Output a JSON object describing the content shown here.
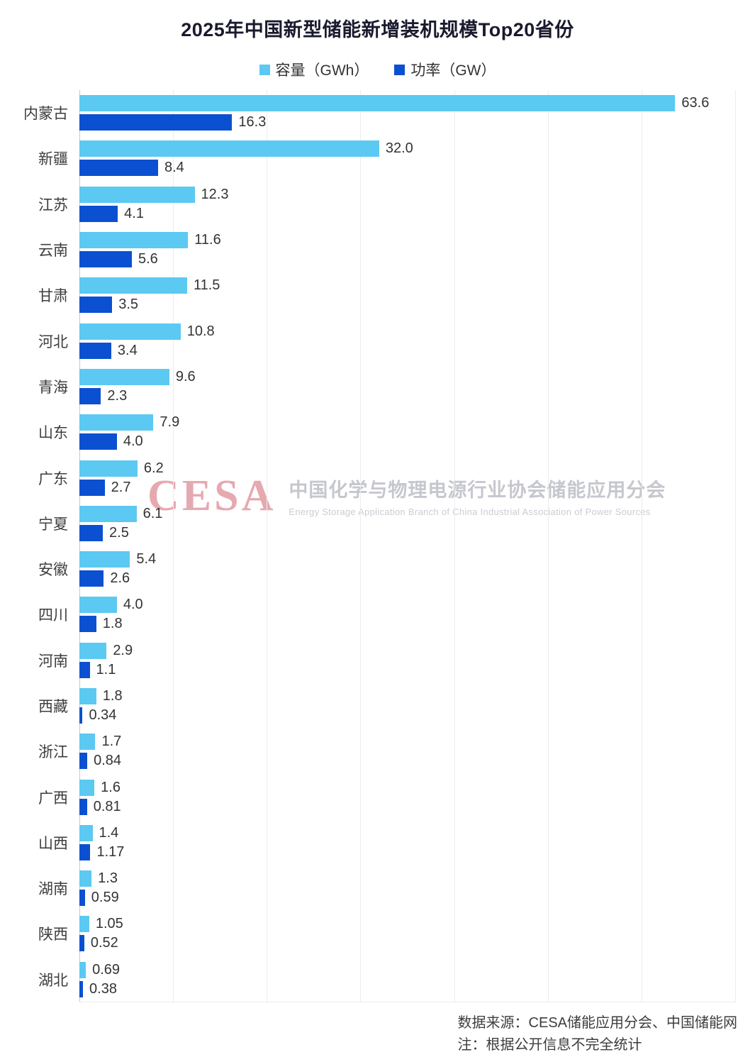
{
  "chart_data": {
    "type": "bar",
    "orientation": "horizontal",
    "title": "2025年中国新型储能新增装机规模Top20省份",
    "categories": [
      "内蒙古",
      "新疆",
      "江苏",
      "云南",
      "甘肃",
      "河北",
      "青海",
      "山东",
      "广东",
      "宁夏",
      "安徽",
      "四川",
      "河南",
      "西藏",
      "浙江",
      "广西",
      "山西",
      "湖南",
      "陕西",
      "湖北"
    ],
    "series": [
      {
        "name": "容量（GWh）",
        "color": "#5BC9F2",
        "values": [
          63.6,
          32.0,
          12.3,
          11.6,
          11.5,
          10.8,
          9.6,
          7.9,
          6.2,
          6.1,
          5.4,
          4.0,
          2.9,
          1.8,
          1.7,
          1.6,
          1.4,
          1.3,
          1.05,
          0.69
        ],
        "labels": [
          "63.6",
          "32.0",
          "12.3",
          "11.6",
          "11.5",
          "10.8",
          "9.6",
          "7.9",
          "6.2",
          "6.1",
          "5.4",
          "4.0",
          "2.9",
          "1.8",
          "1.7",
          "1.6",
          "1.4",
          "1.3",
          "1.05",
          "0.69"
        ]
      },
      {
        "name": "功率（GW）",
        "color": "#0B50D0",
        "values": [
          16.3,
          8.4,
          4.1,
          5.6,
          3.5,
          3.4,
          2.3,
          4.0,
          2.7,
          2.5,
          2.6,
          1.8,
          1.1,
          0.34,
          0.84,
          0.81,
          1.17,
          0.59,
          0.52,
          0.38
        ],
        "labels": [
          "16.3",
          "8.4",
          "4.1",
          "5.6",
          "3.5",
          "3.4",
          "2.3",
          "4.0",
          "2.7",
          "2.5",
          "2.6",
          "1.8",
          "1.1",
          "0.34",
          "0.84",
          "0.81",
          "1.17",
          "0.59",
          "0.52",
          "0.38"
        ]
      }
    ],
    "xlim": [
      0,
      70
    ],
    "gridline_step": 10,
    "grid": true,
    "legend_position": "top"
  },
  "watermark": {
    "logo": "CESA",
    "cn": "中国化学与物理电源行业协会储能应用分会",
    "en": "Energy Storage Application Branch of China Industrial Association of Power Sources"
  },
  "footer": {
    "source": "数据来源：CESA储能应用分会、中国储能网",
    "note": "注：根据公开信息不完全统计"
  }
}
